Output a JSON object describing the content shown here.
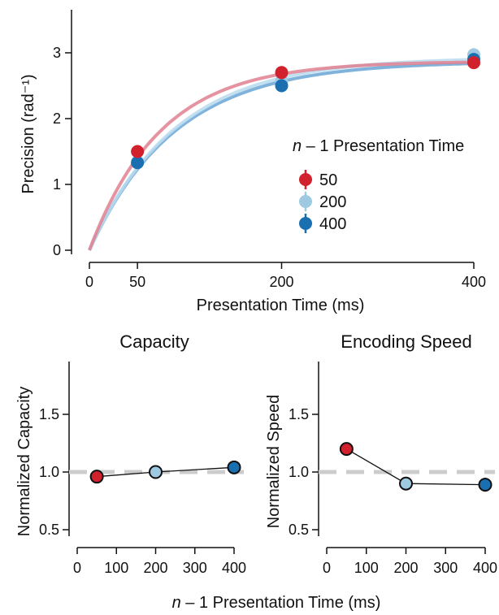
{
  "chart_data": [
    {
      "type": "line",
      "title": "",
      "xlabel": "Presentation Time (ms)",
      "ylabel": "Precision (rad⁻¹)",
      "xlim": [
        0,
        400
      ],
      "ylim": [
        0,
        3.3
      ],
      "xticks": [
        0,
        50,
        200,
        400
      ],
      "yticks": [
        0,
        1,
        2,
        3
      ],
      "legend_title_italic": "n",
      "legend_title_rest": " – 1 Presentation Time",
      "legend_placement": "center-right",
      "x": [
        50,
        200,
        400
      ],
      "series": [
        {
          "name": "50",
          "color": "#d0212d",
          "curve_color": "#e0808f",
          "values": [
            1.5,
            2.7,
            2.85
          ],
          "err": [
            0.05,
            0.07,
            0.07
          ],
          "curve": {
            "asymptote": 2.87,
            "rate": 0.0135
          }
        },
        {
          "name": "200",
          "color": "#9ecae1",
          "curve_color": "#b9dbee",
          "values": [
            1.34,
            2.57,
            2.97
          ],
          "err": [
            0.05,
            0.07,
            0.1
          ],
          "curve": {
            "asymptote": 2.93,
            "rate": 0.0112
          }
        },
        {
          "name": "400",
          "color": "#1a6fb0",
          "curve_color": "#6aa6d6",
          "values": [
            1.33,
            2.5,
            2.9
          ],
          "err": [
            0.05,
            0.08,
            0.08
          ],
          "curve": {
            "asymptote": 2.87,
            "rate": 0.0112
          }
        }
      ]
    },
    {
      "type": "line",
      "title": "Capacity",
      "xlabel": "",
      "ylabel": "Normalized Capacity",
      "xlim": [
        -20,
        420
      ],
      "ylim": [
        0.45,
        1.85
      ],
      "xticks": [
        0,
        100,
        200,
        300,
        400
      ],
      "yticks": [
        0.5,
        1.0,
        1.5
      ],
      "ytick_labels": [
        "0.5",
        "1.0",
        "1.5"
      ],
      "reference_line": 1.0,
      "x": [
        50,
        200,
        400
      ],
      "values": [
        0.96,
        1.0,
        1.04
      ],
      "err": [
        0.02,
        0.02,
        0.02
      ],
      "colors": [
        "#d0212d",
        "#9ecae1",
        "#1a6fb0"
      ]
    },
    {
      "type": "line",
      "title": "Encoding Speed",
      "xlabel": "",
      "ylabel": "Normalized Speed",
      "xlim": [
        -20,
        420
      ],
      "ylim": [
        0.45,
        1.85
      ],
      "xticks": [
        0,
        100,
        200,
        300,
        400
      ],
      "yticks": [
        0.5,
        1.0,
        1.5
      ],
      "ytick_labels": [
        "0.5",
        "1.0",
        "1.5"
      ],
      "reference_line": 1.0,
      "x": [
        50,
        200,
        400
      ],
      "values": [
        1.2,
        0.9,
        0.89
      ],
      "err": [
        0.05,
        0.04,
        0.06
      ],
      "colors": [
        "#d0212d",
        "#9ecae1",
        "#1a6fb0"
      ]
    }
  ],
  "shared_xlabel_italic": "n",
  "shared_xlabel_rest": " – 1 Presentation Time (ms)"
}
